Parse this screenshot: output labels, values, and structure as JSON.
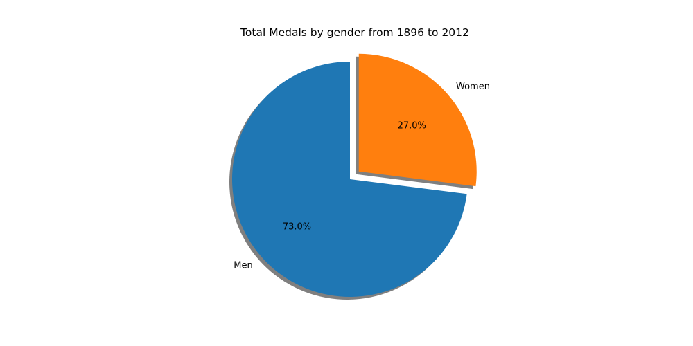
{
  "chart_data": {
    "type": "pie",
    "title": "Total Medals by gender from 1896 to 2012",
    "slices": [
      {
        "label": "Men",
        "value": 73.0,
        "pct_label": "73.0%",
        "color": "#1f77b4",
        "explode": 0
      },
      {
        "label": "Women",
        "value": 27.0,
        "pct_label": "27.0%",
        "color": "#ff7f0e",
        "explode": 0.1
      }
    ],
    "start_angle": 90,
    "direction": "counterclockwise",
    "shadow": true,
    "legend": false
  }
}
